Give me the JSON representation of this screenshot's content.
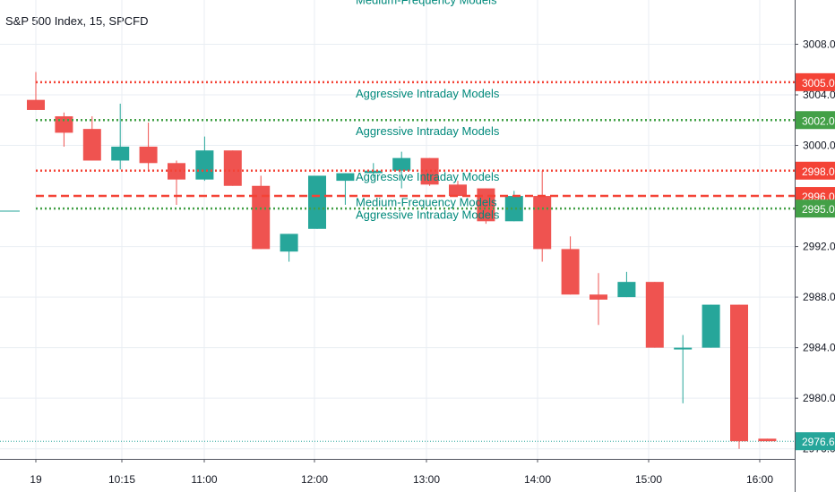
{
  "header": {
    "symbol_title": "S&P 500 Index, 15, SPCFD"
  },
  "colors": {
    "up": "#26a69a",
    "down": "#ef5350",
    "support": "#43a047",
    "resistance": "#f44336",
    "grid": "#e9eef3",
    "text": "#131722",
    "annotation": "#00897b"
  },
  "chart_data": {
    "type": "candlestick",
    "title": "S&P 500 Index, 15, SPCFD",
    "x_ticks": [
      "19",
      "10:15",
      "11:00",
      "12:00",
      "13:00",
      "14:00",
      "15:00",
      "16:00"
    ],
    "y_ticks": [
      3008.0,
      3004.0,
      3000.0,
      2992.0,
      2988.0,
      2984.0,
      2980.0,
      2976.0
    ],
    "ylim": [
      2975.2,
      3011.5
    ],
    "candles": [
      {
        "o": 3003.6,
        "h": 3005.8,
        "l": 3002.8,
        "c": 3002.8
      },
      {
        "o": 3002.3,
        "h": 3002.6,
        "l": 2999.9,
        "c": 3001.0
      },
      {
        "o": 3001.3,
        "h": 3002.3,
        "l": 2998.8,
        "c": 2998.8
      },
      {
        "o": 2998.8,
        "h": 3003.3,
        "l": 2998.1,
        "c": 2999.9
      },
      {
        "o": 2999.9,
        "h": 3001.8,
        "l": 2998.1,
        "c": 2998.6
      },
      {
        "o": 2998.6,
        "h": 2998.8,
        "l": 2995.3,
        "c": 2997.3
      },
      {
        "o": 2997.3,
        "h": 3000.7,
        "l": 2997.2,
        "c": 2999.6
      },
      {
        "o": 2999.6,
        "h": 2999.6,
        "l": 2996.8,
        "c": 2996.8
      },
      {
        "o": 2996.8,
        "h": 2997.6,
        "l": 2991.8,
        "c": 2991.8
      },
      {
        "o": 2991.6,
        "h": 2993.0,
        "l": 2990.8,
        "c": 2993.0
      },
      {
        "o": 2993.4,
        "h": 2997.6,
        "l": 2993.4,
        "c": 2997.6
      },
      {
        "o": 2997.2,
        "h": 2997.8,
        "l": 2995.3,
        "c": 2997.8
      },
      {
        "o": 2997.8,
        "h": 2998.6,
        "l": 2997.4,
        "c": 2998.0
      },
      {
        "o": 2998.0,
        "h": 2999.5,
        "l": 2996.6,
        "c": 2999.0
      },
      {
        "o": 2999.0,
        "h": 2999.0,
        "l": 2996.8,
        "c": 2996.9
      },
      {
        "o": 2996.9,
        "h": 2997.2,
        "l": 2996.0,
        "c": 2996.0
      },
      {
        "o": 2996.6,
        "h": 2996.6,
        "l": 2993.8,
        "c": 2994.0
      },
      {
        "o": 2994.0,
        "h": 2996.4,
        "l": 2994.0,
        "c": 2996.0
      },
      {
        "o": 2996.0,
        "h": 2998.0,
        "l": 2990.8,
        "c": 2991.8
      },
      {
        "o": 2991.8,
        "h": 2992.8,
        "l": 2988.2,
        "c": 2988.2
      },
      {
        "o": 2988.2,
        "h": 2989.9,
        "l": 2985.8,
        "c": 2987.8
      },
      {
        "o": 2988.0,
        "h": 2990.0,
        "l": 2988.0,
        "c": 2989.2
      },
      {
        "o": 2989.2,
        "h": 2989.2,
        "l": 2984.0,
        "c": 2984.0
      },
      {
        "o": 2984.0,
        "h": 2985.0,
        "l": 2979.6,
        "c": 2984.0
      },
      {
        "o": 2984.0,
        "h": 2987.4,
        "l": 2984.0,
        "c": 2987.4
      },
      {
        "o": 2987.4,
        "h": 2987.4,
        "l": 2976.0,
        "c": 2976.6
      },
      {
        "o": 2976.8,
        "h": 2976.8,
        "l": 2976.6,
        "c": 2976.6
      }
    ],
    "price_lines": [
      {
        "price": 3005.0,
        "label": "3005.0",
        "kind": "resistance",
        "style": "dotted",
        "annotation": ""
      },
      {
        "price": 3002.0,
        "label": "3002.0",
        "kind": "support",
        "style": "dotted",
        "annotation": ""
      },
      {
        "price": 2998.0,
        "label": "2998.0",
        "kind": "resistance",
        "style": "dotted",
        "annotation": ""
      },
      {
        "price": 2996.0,
        "label": "2996.0",
        "kind": "resistance",
        "style": "dashed",
        "annotation": ""
      },
      {
        "price": 2995.0,
        "label": "2995.0",
        "kind": "support",
        "style": "dotted",
        "annotation": ""
      }
    ],
    "annotations": [
      {
        "text": "Medium-Frequency Models",
        "price": 3011.2
      },
      {
        "text": "Aggressive Intraday Models",
        "price": 3003.8
      },
      {
        "text": "Aggressive Intraday Models",
        "price": 3000.8
      },
      {
        "text": "Aggressive Intraday Models",
        "price": 2997.2
      },
      {
        "text": "Medium-Frequency Models",
        "price": 2995.2
      },
      {
        "text": "Aggressive Intraday Models",
        "price": 2994.2
      }
    ],
    "last_price": {
      "price": 2976.6,
      "label": "2976.6"
    }
  }
}
